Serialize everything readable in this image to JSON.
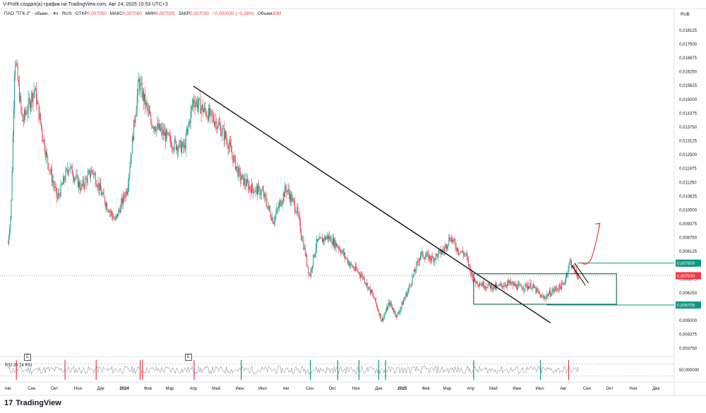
{
  "credit": "V-Profit создал(а) график на TradingView.com, Авг 24, 2025 10:53 UTC+3",
  "legend": {
    "symbol": "ПАО \"ТГК-2\" - обыкн. · 4ч · RUS",
    "open_label": "ОТКР",
    "open_value": "0,007050",
    "high_label": "МАКС",
    "high_value": "0,007060",
    "low_label": "МИН",
    "low_value": "0,007025",
    "close_label": "ЗАКР",
    "close_value": "0,007030",
    "change": "−0,000020 (−0,28%)",
    "volume_label": "Объем",
    "volume_value": "30М"
  },
  "currency_label": "RUB",
  "rsi_label": "RSI 20 74 RSI",
  "event_badge": "E",
  "brand": "TradingView",
  "colors": {
    "up": "#089981",
    "down": "#f23645",
    "trendline": "#000000",
    "box": "#0e5e50",
    "level": "#089981",
    "arrow": "#f23645",
    "rsi": "#9598a1"
  },
  "chart_data": {
    "type": "candlestick",
    "y_axis_ticks": [
      "0,018125",
      "0,017500",
      "0,016875",
      "0,016250",
      "0,015625",
      "0,015000",
      "0,014375",
      "0,013750",
      "0,013125",
      "0,012500",
      "0,011875",
      "0,011250",
      "0,010625",
      "0,010000",
      "0,009375",
      "0,008750",
      "0,008125",
      "0,007500",
      "0,006875",
      "0,006250",
      "0,005625",
      "0,005000",
      "0,004375",
      "0,003750"
    ],
    "ylim": [
      0.0036,
      0.0186
    ],
    "price_labels": [
      {
        "value": 0.0076,
        "text": "0,007600",
        "color": "#089981"
      },
      {
        "value": 0.00703,
        "text": "0,007030",
        "color": "#f23645"
      },
      {
        "value": 0.005705,
        "text": "0,005705",
        "color": "#089981"
      }
    ],
    "x_axis_ticks": [
      "Авг",
      "Сен",
      "Окт",
      "Ноя",
      "Дек",
      "2024",
      "Фев",
      "Мар",
      "Апр",
      "Май",
      "Июн",
      "Июл",
      "Авг",
      "Сен",
      "Окт",
      "Ноя",
      "Дек",
      "2025",
      "Фев",
      "Мар",
      "Апр",
      "Май",
      "Июн",
      "Июл",
      "Авг",
      "Сен",
      "Окт",
      "Ноя",
      "Дек"
    ],
    "price_path": [
      [
        "2023-08-01",
        0.0085
      ],
      [
        "2023-08-05",
        0.01
      ],
      [
        "2023-08-10",
        0.017
      ],
      [
        "2023-08-20",
        0.014
      ],
      [
        "2023-09-05",
        0.0155
      ],
      [
        "2023-09-20",
        0.0125
      ],
      [
        "2023-10-05",
        0.0105
      ],
      [
        "2023-10-20",
        0.012
      ],
      [
        "2023-11-05",
        0.011
      ],
      [
        "2023-11-20",
        0.0118
      ],
      [
        "2023-12-05",
        0.0105
      ],
      [
        "2023-12-20",
        0.0095
      ],
      [
        "2024-01-05",
        0.011
      ],
      [
        "2024-01-20",
        0.0158
      ],
      [
        "2024-02-05",
        0.014
      ],
      [
        "2024-02-20",
        0.0135
      ],
      [
        "2024-03-05",
        0.013
      ],
      [
        "2024-03-20",
        0.0128
      ],
      [
        "2024-04-01",
        0.015
      ],
      [
        "2024-04-15",
        0.0145
      ],
      [
        "2024-05-01",
        0.014
      ],
      [
        "2024-05-15",
        0.0132
      ],
      [
        "2024-06-01",
        0.0115
      ],
      [
        "2024-06-15",
        0.011
      ],
      [
        "2024-07-01",
        0.0108
      ],
      [
        "2024-07-15",
        0.0095
      ],
      [
        "2024-08-01",
        0.011
      ],
      [
        "2024-08-15",
        0.01
      ],
      [
        "2024-09-01",
        0.007
      ],
      [
        "2024-09-10",
        0.0085
      ],
      [
        "2024-09-25",
        0.0088
      ],
      [
        "2024-10-10",
        0.0083
      ],
      [
        "2024-10-25",
        0.0075
      ],
      [
        "2024-11-10",
        0.007
      ],
      [
        "2024-11-25",
        0.006
      ],
      [
        "2024-12-05",
        0.005
      ],
      [
        "2024-12-15",
        0.0058
      ],
      [
        "2024-12-25",
        0.0052
      ],
      [
        "2025-01-10",
        0.0065
      ],
      [
        "2025-01-25",
        0.008
      ],
      [
        "2025-02-10",
        0.0078
      ],
      [
        "2025-02-25",
        0.0082
      ],
      [
        "2025-03-05",
        0.0088
      ],
      [
        "2025-03-15",
        0.0082
      ],
      [
        "2025-03-25",
        0.008
      ],
      [
        "2025-04-05",
        0.0068
      ],
      [
        "2025-04-20",
        0.0066
      ],
      [
        "2025-05-05",
        0.0065
      ],
      [
        "2025-05-20",
        0.0067
      ],
      [
        "2025-06-05",
        0.0065
      ],
      [
        "2025-06-20",
        0.0066
      ],
      [
        "2025-07-05",
        0.006
      ],
      [
        "2025-07-20",
        0.0064
      ],
      [
        "2025-08-01",
        0.0066
      ],
      [
        "2025-08-10",
        0.0077
      ],
      [
        "2025-08-18",
        0.0071
      ],
      [
        "2025-08-22",
        0.00703
      ]
    ],
    "trendline": {
      "from": [
        "2024-04-01",
        0.0156
      ],
      "to": [
        "2025-07-15",
        0.0049
      ]
    },
    "channel_box": {
      "x_from": "2025-04-05",
      "x_to": "2025-10-10",
      "y_low": 0.00574,
      "y_high": 0.00712
    },
    "levels": [
      0.0076,
      0.005705
    ],
    "forecast_arrow": [
      [
        "2025-08-25",
        0.00763
      ],
      [
        "2025-09-05",
        0.0077
      ],
      [
        "2025-09-18",
        0.0094
      ]
    ],
    "flag_lines": [
      {
        "from": [
          "2025-08-12",
          0.0075
        ],
        "to": [
          "2025-08-30",
          0.0066
        ]
      },
      {
        "from": [
          "2025-08-16",
          0.0076
        ],
        "to": [
          "2025-09-03",
          0.0067
        ]
      }
    ],
    "rsi": {
      "overbought_lines": [
        80,
        20
      ],
      "right_tick": "50,000000"
    }
  }
}
